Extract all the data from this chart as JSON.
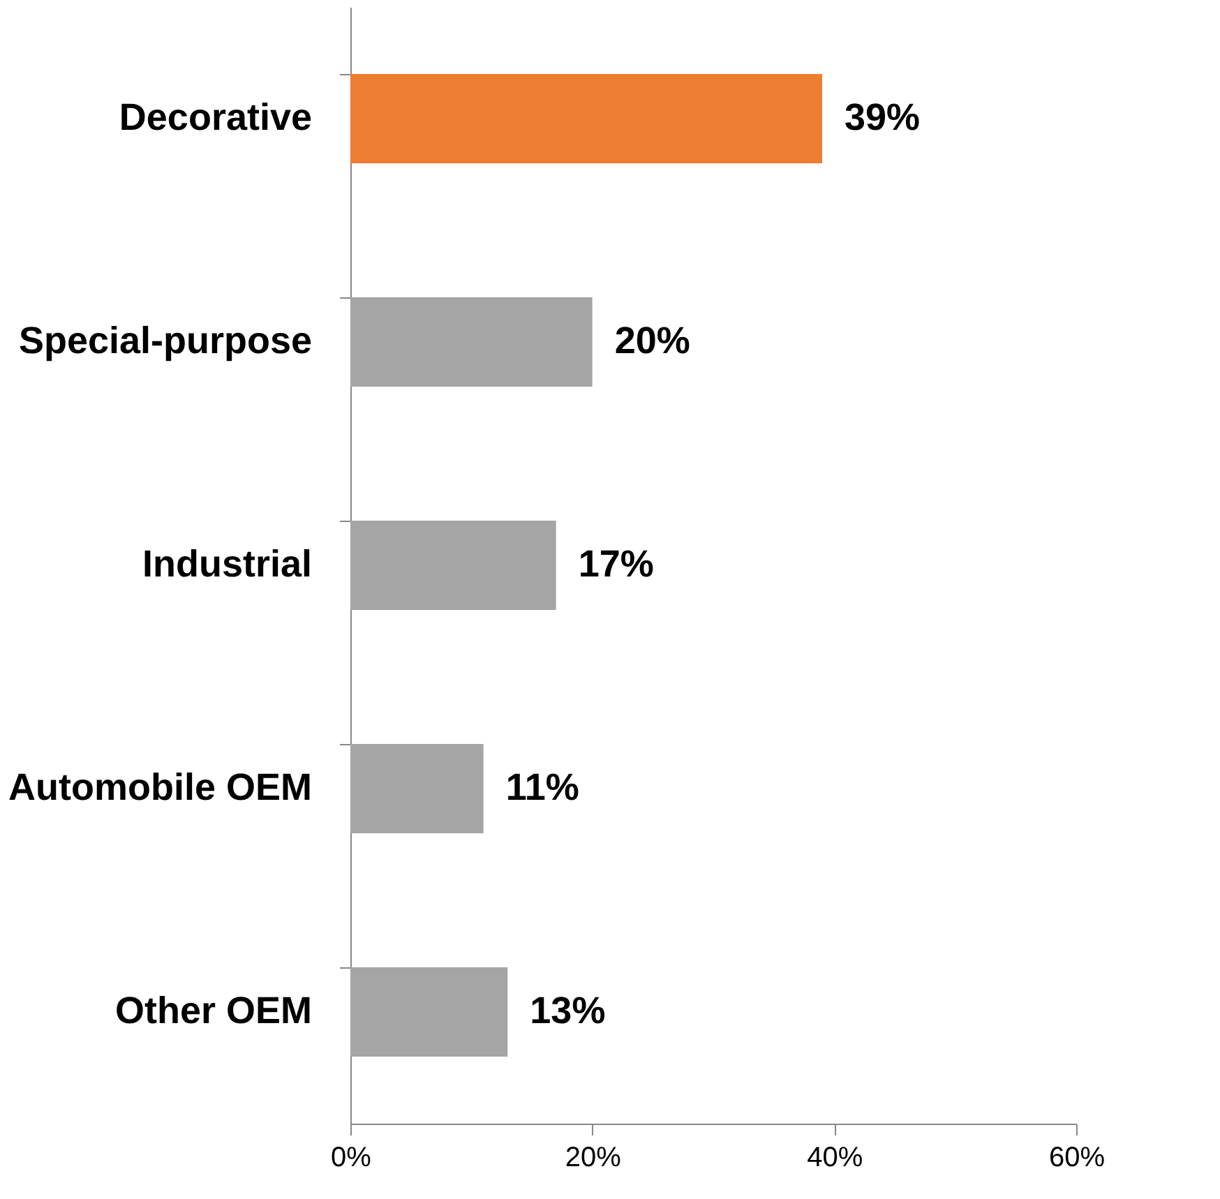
{
  "chart_data": {
    "type": "bar",
    "orientation": "horizontal",
    "categories": [
      "Decorative",
      "Special-purpose",
      "Industrial",
      "Automobile OEM",
      "Other OEM"
    ],
    "values": [
      39,
      20,
      17,
      11,
      13
    ],
    "colors": [
      "#ed7d31",
      "#a5a5a5",
      "#a5a5a5",
      "#a5a5a5",
      "#a5a5a5"
    ],
    "value_labels": [
      "39%",
      "20%",
      "17%",
      "11%",
      "13%"
    ],
    "xlim": [
      0,
      60
    ],
    "xticks": [
      {
        "value": 0,
        "label": "0%"
      },
      {
        "value": 20,
        "label": "20%"
      },
      {
        "value": 40,
        "label": "40%"
      },
      {
        "value": 60,
        "label": "60%"
      }
    ],
    "grid": false
  }
}
